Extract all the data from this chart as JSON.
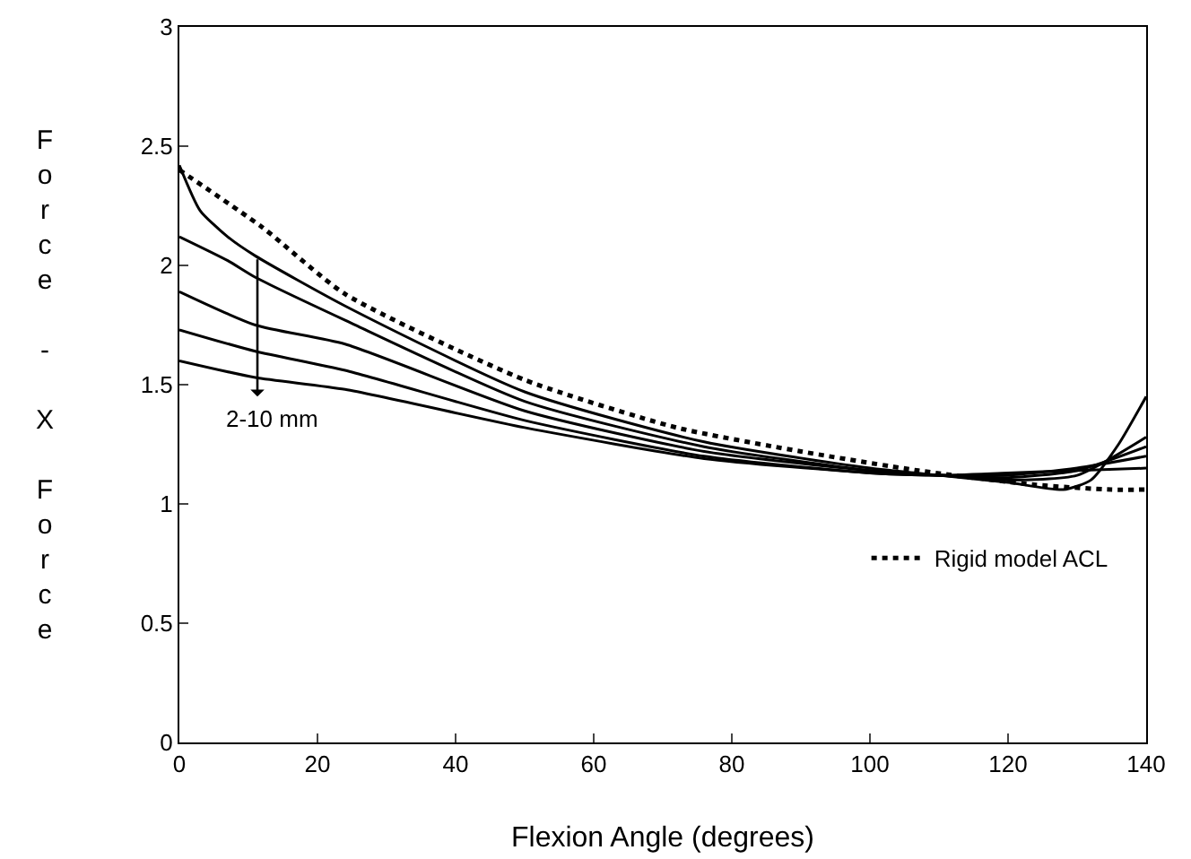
{
  "chart_data": {
    "type": "line",
    "xlabel": "Flexion Angle (degrees)",
    "ylabel": "Force - X Force",
    "xlim": [
      0,
      140
    ],
    "xticks": [
      0,
      20,
      40,
      60,
      80,
      100,
      120,
      140
    ],
    "ylim": [
      0,
      3
    ],
    "yticks": [
      0,
      0.5,
      1,
      1.5,
      2,
      2.5,
      3
    ],
    "grid": false,
    "legend": "bottom right",
    "marker": "none",
    "annotations": [
      {
        "text": "2-10 mm",
        "x": 11.3,
        "y": 1.45
      }
    ],
    "series": [
      {
        "color": "#000000",
        "line_style": "solid",
        "x": [
          0,
          3,
          7,
          11,
          24,
          50,
          76,
          100,
          110,
          120,
          128,
          132,
          136,
          140
        ],
        "values": [
          2.42,
          2.23,
          2.12,
          2.04,
          1.83,
          1.47,
          1.26,
          1.15,
          1.12,
          1.09,
          1.06,
          1.1,
          1.25,
          1.45
        ]
      },
      {
        "color": "#000000",
        "line_style": "solid",
        "x": [
          0,
          7,
          11,
          24,
          50,
          76,
          100,
          110,
          120,
          130,
          140
        ],
        "values": [
          2.12,
          2.02,
          1.95,
          1.77,
          1.43,
          1.24,
          1.14,
          1.12,
          1.1,
          1.12,
          1.28
        ]
      },
      {
        "color": "#000000",
        "line_style": "solid",
        "x": [
          0,
          11,
          24,
          50,
          76,
          100,
          110,
          120,
          130,
          140
        ],
        "values": [
          1.89,
          1.75,
          1.67,
          1.39,
          1.22,
          1.14,
          1.12,
          1.11,
          1.14,
          1.24
        ]
      },
      {
        "color": "#000000",
        "line_style": "solid",
        "x": [
          0,
          11,
          24,
          50,
          76,
          100,
          110,
          120,
          130,
          140
        ],
        "values": [
          1.73,
          1.64,
          1.56,
          1.35,
          1.2,
          1.13,
          1.12,
          1.12,
          1.15,
          1.2
        ]
      },
      {
        "color": "#000000",
        "line_style": "solid",
        "x": [
          0,
          11,
          24,
          50,
          76,
          100,
          110,
          120,
          130,
          140
        ],
        "values": [
          1.6,
          1.53,
          1.48,
          1.32,
          1.19,
          1.13,
          1.12,
          1.13,
          1.14,
          1.15
        ]
      },
      {
        "name": "Rigid model ACL",
        "color": "#000000",
        "line_style": "dotted",
        "x": [
          0,
          12,
          24,
          50,
          72,
          90,
          107,
          124,
          135,
          140
        ],
        "values": [
          2.4,
          2.16,
          1.88,
          1.52,
          1.32,
          1.22,
          1.14,
          1.08,
          1.06,
          1.06
        ]
      }
    ]
  }
}
